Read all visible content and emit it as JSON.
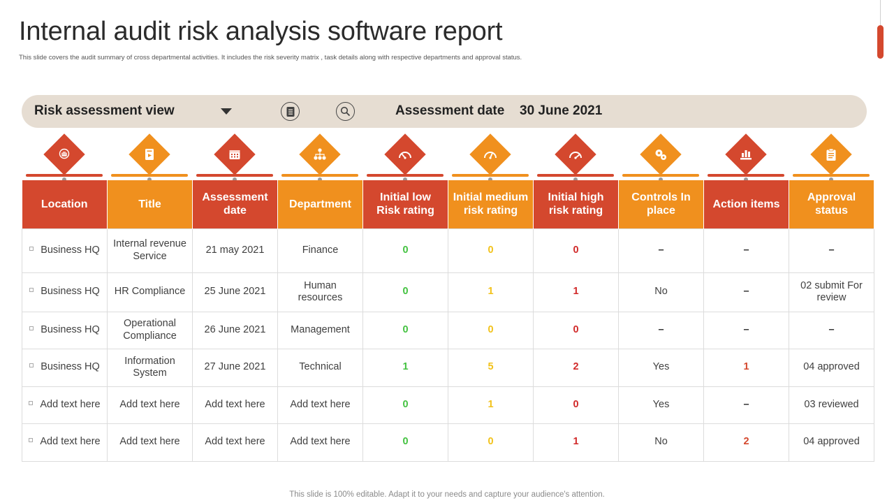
{
  "title": "Internal audit risk analysis software report",
  "subtitle": "This slide covers the audit summary of cross departmental activities. It includes the risk severity matrix , task details along  with respective departments and approval status.",
  "toolbar": {
    "view_label": "Risk assessment view",
    "date_label": "Assessment date",
    "date_value": "30 June 2021"
  },
  "colors": {
    "red": "#d4482e",
    "orange": "#f0901e",
    "toolbar": "#e6ddd2",
    "low": "#44c241",
    "medium": "#f2c21a",
    "high": "#d12a2a"
  },
  "columns": [
    {
      "label": "Location",
      "icon": "location-hand-icon",
      "color": "red"
    },
    {
      "label": "Title",
      "icon": "document-icon",
      "color": "orange"
    },
    {
      "label": "Assessment date",
      "icon": "calendar-icon",
      "color": "red"
    },
    {
      "label": "Department",
      "icon": "org-chart-icon",
      "color": "orange"
    },
    {
      "label": "Initial low Risk rating",
      "icon": "gauge-low-icon",
      "color": "red"
    },
    {
      "label": "Initial medium risk rating",
      "icon": "gauge-medium-icon",
      "color": "orange"
    },
    {
      "label": "Initial high risk rating",
      "icon": "gauge-high-icon",
      "color": "red"
    },
    {
      "label": "Controls In place",
      "icon": "gears-icon",
      "color": "orange"
    },
    {
      "label": "Action items",
      "icon": "hand-chart-icon",
      "color": "red"
    },
    {
      "label": "Approval status",
      "icon": "clipboard-icon",
      "color": "orange"
    }
  ],
  "rows": [
    [
      "Business HQ",
      "Internal revenue Service",
      "21 may 2021",
      "Finance",
      "0",
      "0",
      "0",
      "–",
      "–",
      "–"
    ],
    [
      "Business HQ",
      "HR Compliance",
      "25 June 2021",
      "Human resources",
      "0",
      "1",
      "1",
      "No",
      "–",
      "02 submit For review"
    ],
    [
      "Business HQ",
      "Operational Compliance",
      "26 June 2021",
      "Management",
      "0",
      "0",
      "0",
      "–",
      "–",
      "–"
    ],
    [
      "Business HQ",
      "Information System",
      "27 June 2021",
      "Technical",
      "1",
      "5",
      "2",
      "Yes",
      "1",
      "04 approved"
    ],
    [
      "Add text here",
      "Add text here",
      "Add text here",
      "Add text here",
      "0",
      "1",
      "0",
      "Yes",
      "–",
      "03 reviewed"
    ],
    [
      "Add text here",
      "Add text here",
      "Add text here",
      "Add text here",
      "0",
      "0",
      "1",
      "No",
      "2",
      "04 approved"
    ]
  ],
  "footer": "This slide is 100% editable. Adapt it to your needs and capture your audience's attention."
}
